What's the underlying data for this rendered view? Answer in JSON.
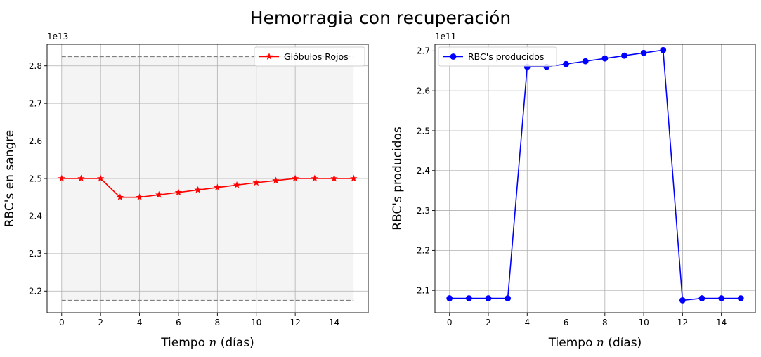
{
  "figure": {
    "suptitle": "Hemorragia con recuperación"
  },
  "chart_data": [
    {
      "type": "line",
      "xlabel": "Tiempo $n$ (días)",
      "xlabel_parts": {
        "before": "Tiempo ",
        "math": "n",
        "after": " (días)"
      },
      "ylabel": "RBC's en sangre",
      "offset_label": "1e13",
      "x": [
        0,
        1,
        2,
        3,
        4,
        5,
        6,
        7,
        8,
        9,
        10,
        11,
        12,
        13,
        14,
        15
      ],
      "series": [
        {
          "name": "Glóbulos Rojos",
          "color": "#ff0000",
          "marker": "star",
          "values": [
            25000000000000.0,
            25000000000000.0,
            25000000000000.0,
            24500000000000.0,
            24500000000000.0,
            24565000000000.0,
            24630000000000.0,
            24695000000000.0,
            24760000000000.0,
            24825000000000.0,
            24890000000000.0,
            24945000000000.0,
            25000000000000.0,
            25000000000000.0,
            25000000000000.0,
            25000000000000.0
          ]
        }
      ],
      "reference_lines": [
        {
          "y": 28250000000000.0,
          "color": "#808080",
          "style": "dashed"
        },
        {
          "y": 21750000000000.0,
          "color": "#808080",
          "style": "dashed"
        }
      ],
      "shaded_band": {
        "y0": 21750000000000.0,
        "y1": 28250000000000.0,
        "x0": 0,
        "x1": 15,
        "color": "#f4f4f4"
      },
      "xlim": [
        -0.75,
        15.75
      ],
      "ylim": [
        21425000000000.0,
        28575000000000.0
      ],
      "xticks": [
        0,
        2,
        4,
        6,
        8,
        10,
        12,
        14
      ],
      "xtick_labels": [
        "0",
        "2",
        "4",
        "6",
        "8",
        "10",
        "12",
        "14"
      ],
      "yticks": [
        22000000000000.0,
        23000000000000.0,
        24000000000000.0,
        25000000000000.0,
        26000000000000.0,
        27000000000000.0,
        28000000000000.0
      ],
      "ytick_labels": [
        "2.2",
        "2.3",
        "2.4",
        "2.5",
        "2.6",
        "2.7",
        "2.8"
      ],
      "grid": true,
      "legend_position": "top-right"
    },
    {
      "type": "line",
      "xlabel": "Tiempo $n$ (días)",
      "xlabel_parts": {
        "before": "Tiempo ",
        "math": "n",
        "after": " (días)"
      },
      "ylabel": "RBC's producidos",
      "offset_label": "1e11",
      "x": [
        0,
        1,
        2,
        3,
        4,
        5,
        6,
        7,
        8,
        9,
        10,
        11,
        12,
        13,
        14,
        15
      ],
      "series": [
        {
          "name": "RBC's producidos",
          "color": "#0000ff",
          "marker": "circle",
          "values": [
            208000000000.0,
            208000000000.0,
            208000000000.0,
            208000000000.0,
            266000000000.0,
            266000000000.0,
            266700000000.0,
            267400000000.0,
            268100000000.0,
            268800000000.0,
            269500000000.0,
            270200000000.0,
            207500000000.0,
            208000000000.0,
            208000000000.0,
            208000000000.0
          ]
        }
      ],
      "xlim": [
        -0.75,
        15.75
      ],
      "ylim": [
        204400000000.0,
        271650000000.0
      ],
      "xticks": [
        0,
        2,
        4,
        6,
        8,
        10,
        12,
        14
      ],
      "xtick_labels": [
        "0",
        "2",
        "4",
        "6",
        "8",
        "10",
        "12",
        "14"
      ],
      "yticks": [
        210000000000.0,
        220000000000.0,
        230000000000.0,
        240000000000.0,
        250000000000.0,
        260000000000.0,
        270000000000.0
      ],
      "ytick_labels": [
        "2.1",
        "2.2",
        "2.3",
        "2.4",
        "2.5",
        "2.6",
        "2.7"
      ],
      "grid": true,
      "legend_position": "top-left"
    }
  ]
}
